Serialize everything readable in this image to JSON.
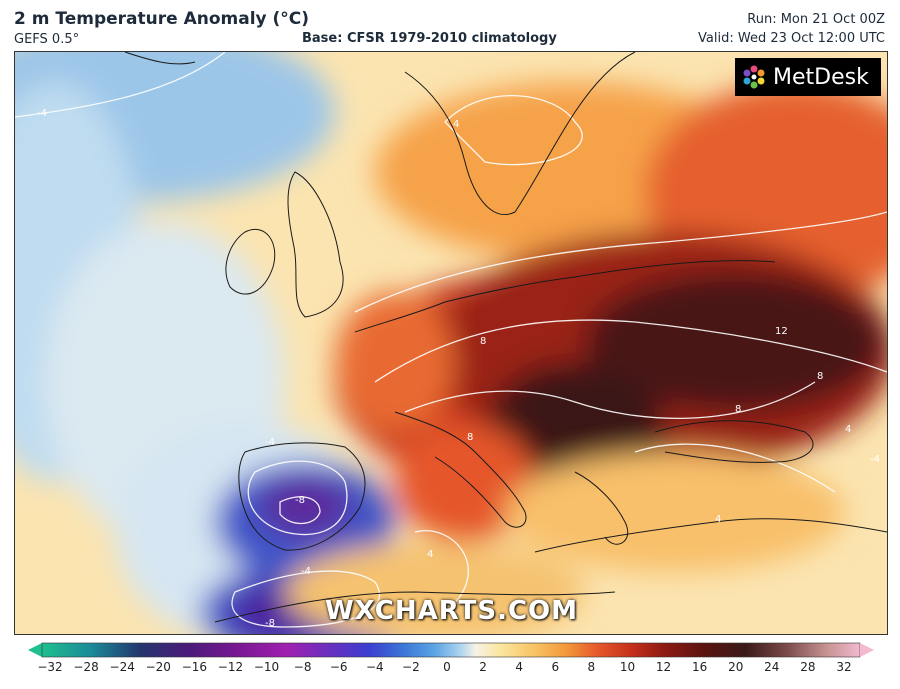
{
  "header": {
    "title": "2 m Temperature Anomaly (°C)",
    "model": "GEFS 0.5°",
    "base": "Base: CFSR 1979-2010 climatology",
    "run": "Run: Mon 21 Oct 00Z",
    "valid": "Valid: Wed 23 Oct 12:00 UTC"
  },
  "branding": {
    "logo": "MetDesk",
    "watermark": "WXCHARTS.COM"
  },
  "map": {
    "region": "Europe, North Africa, Eastern Atlantic",
    "contour_labels": [
      "-4",
      "4",
      "8",
      "12",
      "8",
      "8",
      "4",
      "-4",
      "-8",
      "-4",
      "-8",
      "4",
      "4",
      "8",
      "-4"
    ]
  },
  "legend": {
    "ticks": [
      "−32",
      "−28",
      "−24",
      "−20",
      "−16",
      "−12",
      "−10",
      "−8",
      "−6",
      "−4",
      "−2",
      "0",
      "2",
      "4",
      "6",
      "8",
      "10",
      "12",
      "16",
      "20",
      "24",
      "28",
      "32"
    ],
    "colors": [
      "#1fbf8f",
      "#1a8a98",
      "#25356e",
      "#4b1a7a",
      "#7a1894",
      "#a020b0",
      "#6a2fbf",
      "#3b3fd0",
      "#3b74d6",
      "#5ba4e4",
      "#a8d2ef",
      "#f6f2e6",
      "#fbe6a0",
      "#f8c566",
      "#f39a3c",
      "#e5572a",
      "#c6301b",
      "#8e1a14",
      "#5a1410",
      "#3a1a18",
      "#7a4a4a",
      "#c89494",
      "#f2b9cf"
    ]
  }
}
